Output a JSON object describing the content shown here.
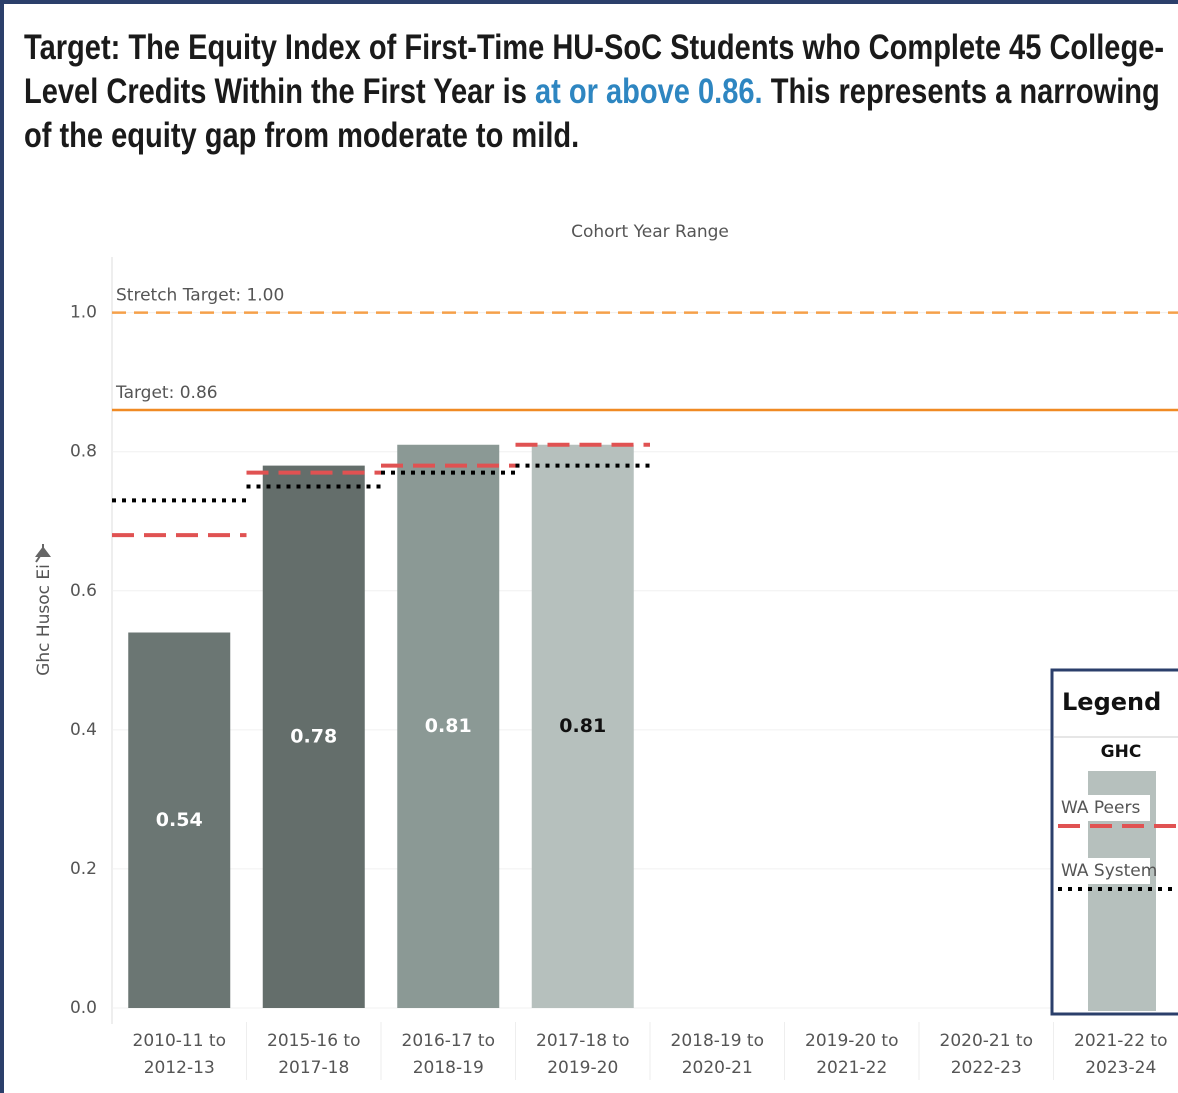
{
  "chart_data": {
    "type": "bar",
    "title_parts": [
      "Target: The Equity Index of First-Time HU-SoC Students who Complete 45 College-Level Credits Within the First Year is ",
      "at or above 0.86.",
      " This represents a narrowing of the equity gap from moderate to mild."
    ],
    "title_highlight_color": "#2e86c1",
    "x_axis_title": "Cohort Year Range",
    "y_axis_title": "Ghc Husoc Ei",
    "categories": [
      "2010-11 to 2012-13",
      "2015-16 to 2017-18",
      "2016-17 to 2018-19",
      "2017-18 to 2019-20",
      "2018-19 to 2020-21",
      "2019-20 to 2021-22",
      "2020-21 to 2022-23",
      "2021-22 to 2023-24"
    ],
    "series": [
      {
        "name": "GHC",
        "colors": [
          "#6b7673",
          "#646e6b",
          "#8b9995",
          "#b6c0bd",
          null,
          null,
          null,
          null
        ],
        "label_colors": [
          "#ffffff",
          "#ffffff",
          "#ffffff",
          "#111111",
          null,
          null,
          null,
          null
        ],
        "values": [
          0.54,
          0.78,
          0.81,
          0.81,
          null,
          null,
          null,
          null
        ]
      },
      {
        "name": "WA Peers",
        "color": "#e05252",
        "style": "dashed",
        "values": [
          0.68,
          0.77,
          0.78,
          0.81,
          null,
          null,
          null,
          null
        ]
      },
      {
        "name": "WA System",
        "color": "#000000",
        "style": "dotted",
        "values": [
          0.73,
          0.75,
          0.77,
          0.78,
          null,
          null,
          null,
          null
        ]
      }
    ],
    "reference_lines": [
      {
        "label": "Stretch Target: 1.00",
        "value": 1.0,
        "color": "#f5a04a",
        "style": "dashed"
      },
      {
        "label": "Target: 0.86",
        "value": 0.86,
        "color": "#f08a24",
        "style": "solid"
      }
    ],
    "ylim": [
      0,
      1.08
    ],
    "yticks": [
      {
        "value": 0,
        "label": "0.0"
      },
      0.2,
      0.4,
      0.6,
      0.8,
      {
        "value": 1,
        "label": "1.0"
      }
    ],
    "grid": true,
    "legend": {
      "title": "Legend",
      "position": "lower right"
    }
  }
}
